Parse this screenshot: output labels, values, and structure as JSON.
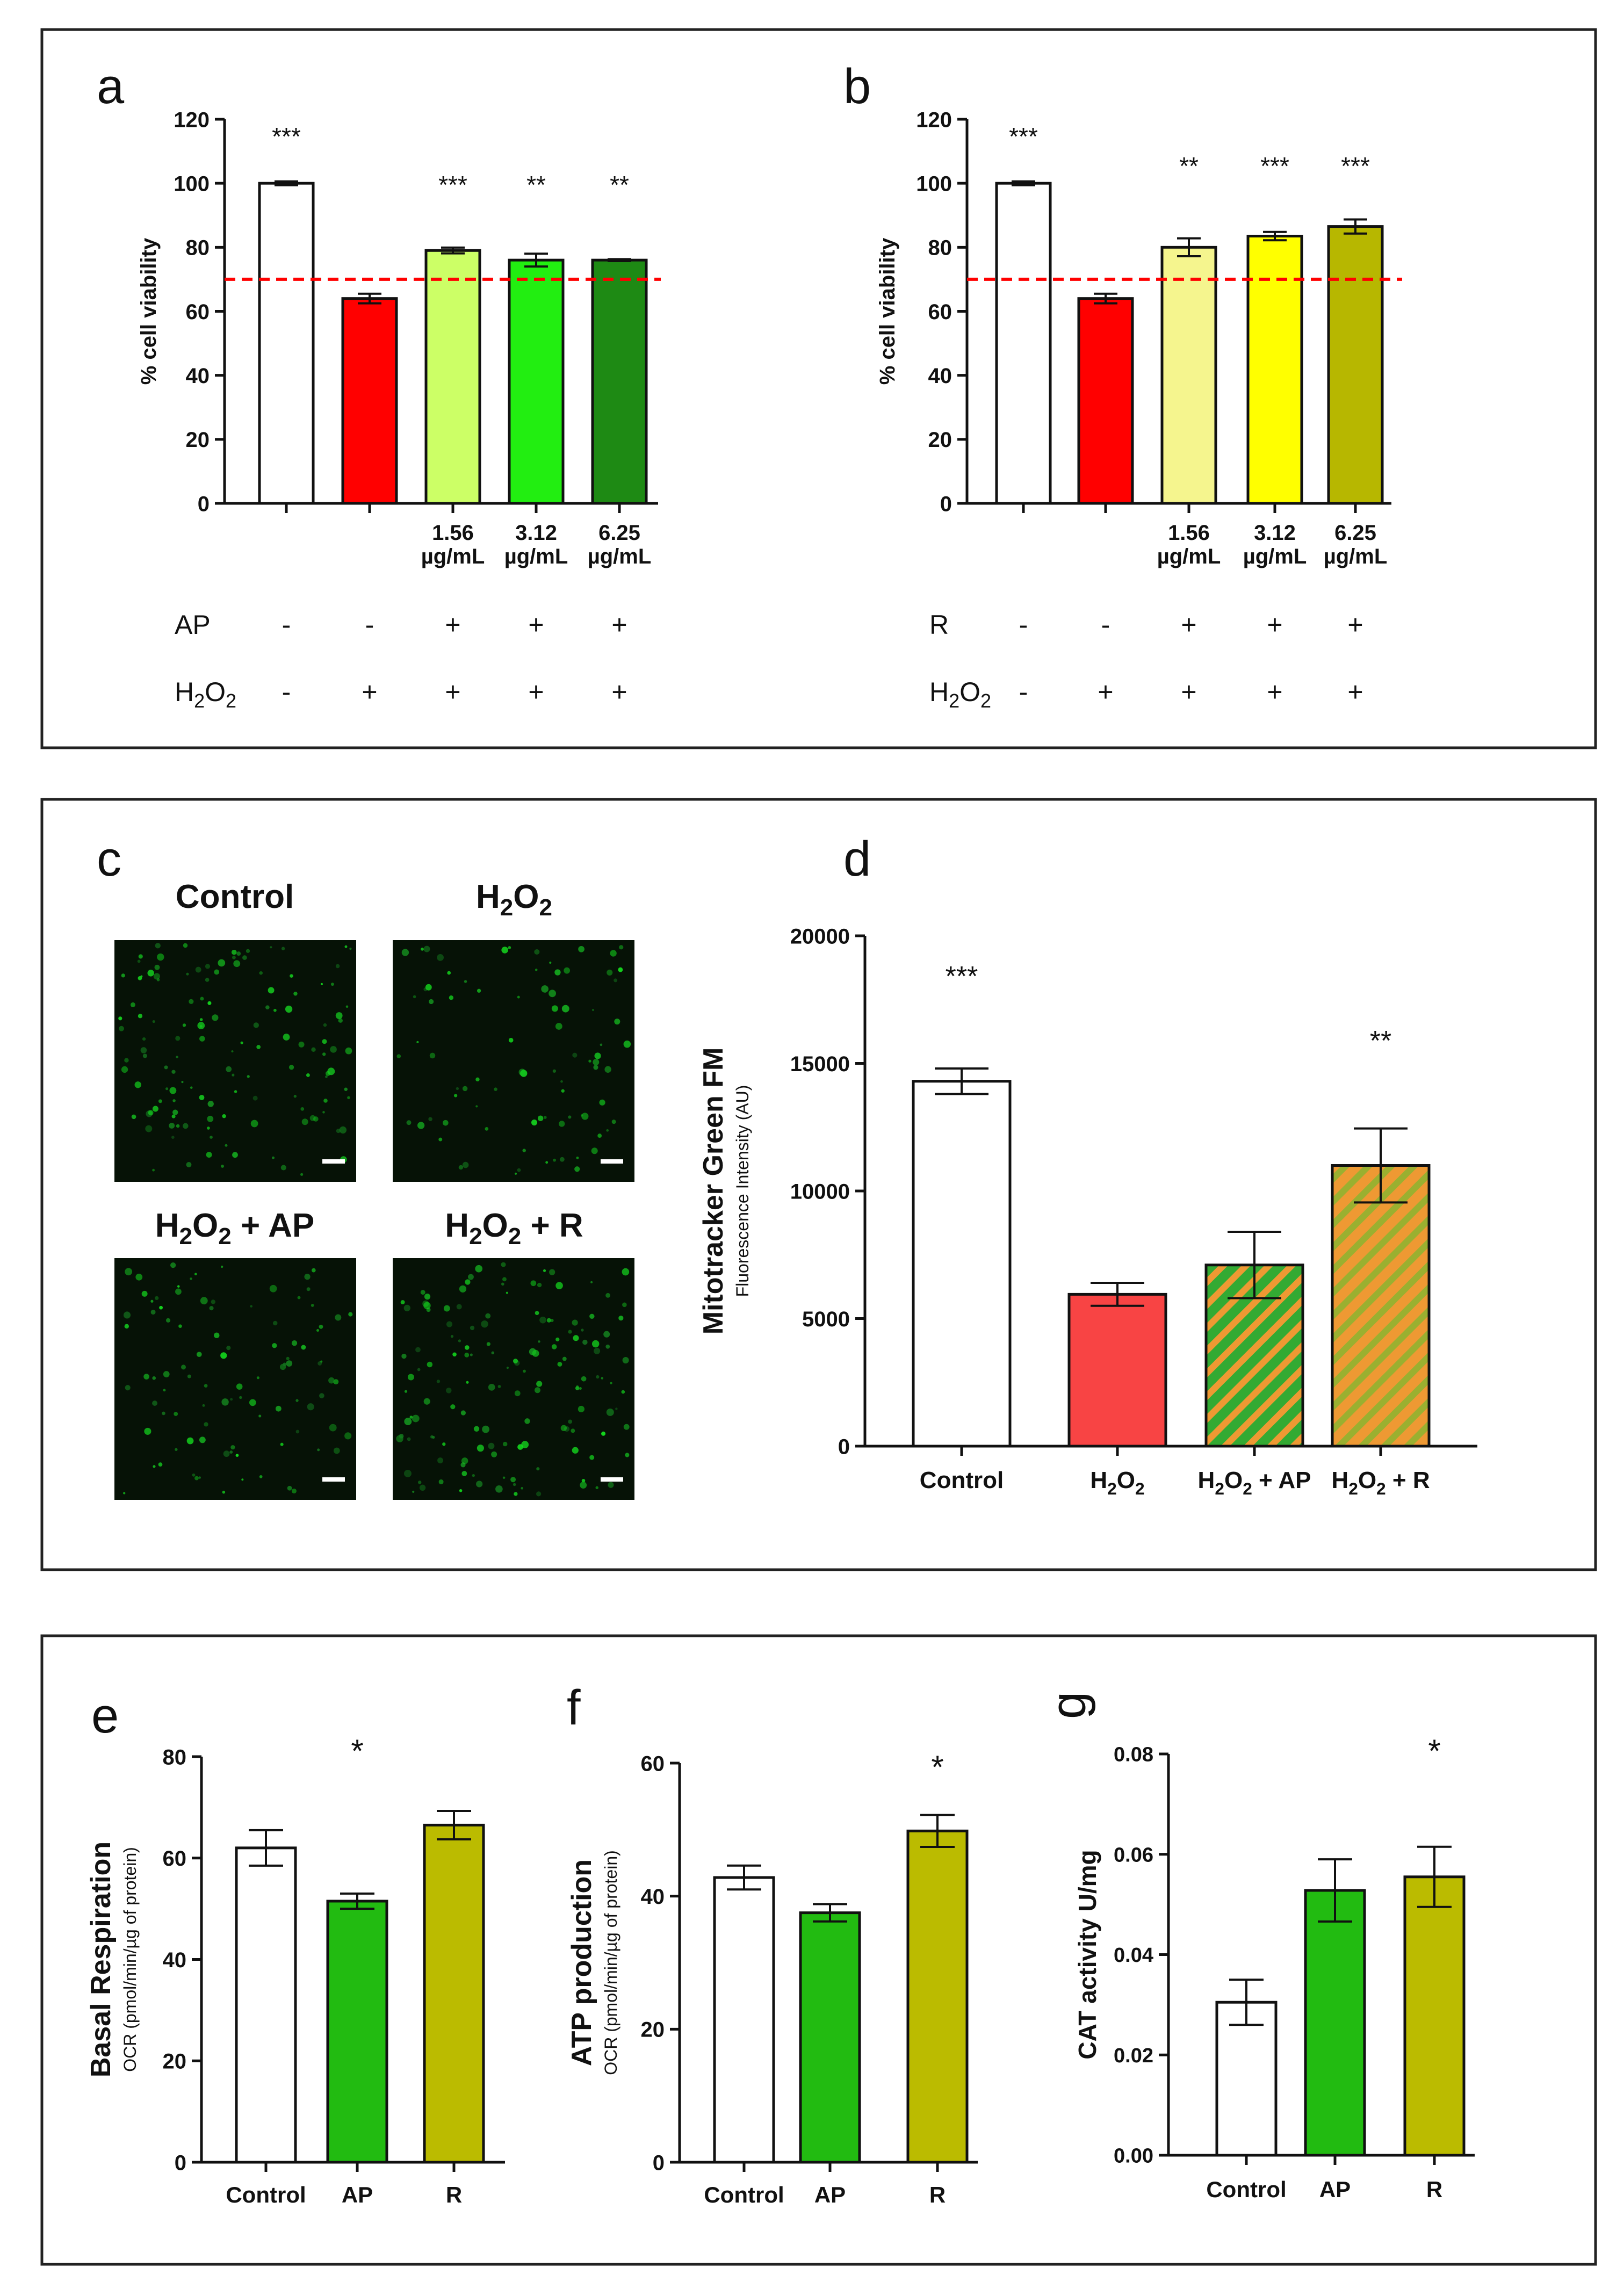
{
  "colors": {
    "ap_1": "#ccff66",
    "ap_2": "#22ee11",
    "ap_3": "#1e8a14",
    "r_1": "#f5f58e",
    "r_2": "#ffff00",
    "r_3": "#b7b700",
    "h2o2": "#ff0000",
    "h2o2_soft": "#f84444",
    "green_bar": "#22bb11",
    "olive_bar": "#bbbb00",
    "hatch_green": "#33aa33",
    "hatch_orange": "#ee9933",
    "threshold_line": "#ff0000"
  },
  "panels": {
    "a": {
      "letter": "a"
    },
    "b": {
      "letter": "b"
    },
    "c": {
      "letter": "c",
      "labels": {
        "control": "Control",
        "h2o2_plus_ap_suffix": " + AP",
        "h2o2_plus_r_suffix": " + R"
      },
      "scale_bar": "scale-bar"
    },
    "d": {
      "letter": "d"
    },
    "e": {
      "letter": "e"
    },
    "f": {
      "letter": "f"
    },
    "g": {
      "letter": "g"
    }
  },
  "chart_data": [
    {
      "id": "a",
      "type": "bar",
      "ylabel": "% cell viability",
      "ylim": [
        0,
        120
      ],
      "yticks": [
        0,
        20,
        40,
        60,
        80,
        100,
        120
      ],
      "reference_line": 70,
      "categories": [
        "",
        "",
        "1.56\nµg/mL",
        "3.12\nµg/mL",
        "6.25\nµg/mL"
      ],
      "values": [
        100,
        64,
        79,
        76,
        76
      ],
      "errors": [
        0.6,
        1.5,
        0.9,
        2.0,
        0.3
      ],
      "significance": [
        "***",
        "",
        "***",
        "**",
        "**"
      ],
      "conditions": [
        {
          "label": "AP",
          "signs": [
            "-",
            "-",
            "+",
            "+",
            "+"
          ]
        },
        {
          "label": "H2O2",
          "signs": [
            "-",
            "+",
            "+",
            "+",
            "+"
          ]
        }
      ]
    },
    {
      "id": "b",
      "type": "bar",
      "ylabel": "% cell viability",
      "ylim": [
        0,
        120
      ],
      "yticks": [
        0,
        20,
        40,
        60,
        80,
        100,
        120
      ],
      "reference_line": 70,
      "categories": [
        "",
        "",
        "1.56\nµg/mL",
        "3.12\nµg/mL",
        "6.25\nµg/mL"
      ],
      "values": [
        100,
        64,
        80,
        83.5,
        86.5
      ],
      "errors": [
        0.6,
        1.5,
        2.8,
        1.3,
        2.2
      ],
      "significance": [
        "***",
        "",
        "**",
        "***",
        "***"
      ],
      "conditions": [
        {
          "label": "R",
          "signs": [
            "-",
            "-",
            "+",
            "+",
            "+"
          ]
        },
        {
          "label": "H2O2",
          "signs": [
            "-",
            "+",
            "+",
            "+",
            "+"
          ]
        }
      ]
    },
    {
      "id": "d",
      "type": "bar",
      "ylabel": "Mitotracker Green FM",
      "ylabel_sub": "Fluorescence Intensity (AU)",
      "ylim": [
        0,
        20000
      ],
      "yticks": [
        0,
        5000,
        10000,
        15000,
        20000
      ],
      "categories": [
        "Control",
        "H2O2",
        "H2O2 + AP",
        "H2O2 + R"
      ],
      "values": [
        14300,
        5950,
        7100,
        11000
      ],
      "errors": [
        500,
        450,
        1300,
        1450
      ],
      "significance": [
        "***",
        "",
        "",
        "**"
      ]
    },
    {
      "id": "e",
      "type": "bar",
      "ylabel": "Basal Respiration",
      "ylabel_sub": "OCR (pmol/min/µg of protein)",
      "ylim": [
        0,
        80
      ],
      "yticks": [
        0,
        20,
        40,
        60,
        80
      ],
      "categories": [
        "Control",
        "AP",
        "R"
      ],
      "values": [
        62,
        51.5,
        66.5
      ],
      "errors": [
        3.5,
        1.5,
        2.8
      ],
      "significance": [
        "",
        "*",
        ""
      ]
    },
    {
      "id": "f",
      "type": "bar",
      "ylabel": "ATP production",
      "ylabel_sub": "OCR (pmol/min/µg of protein)",
      "ylim": [
        0,
        60
      ],
      "yticks": [
        0,
        20,
        40,
        60
      ],
      "categories": [
        "Control",
        "AP",
        "R"
      ],
      "values": [
        42.8,
        37.5,
        49.8
      ],
      "errors": [
        1.8,
        1.3,
        2.4
      ],
      "significance": [
        "",
        "",
        "*"
      ]
    },
    {
      "id": "g",
      "type": "bar",
      "ylabel": "CAT activity U/mg",
      "ylim": [
        0,
        0.08
      ],
      "yticks": [
        0.0,
        0.02,
        0.04,
        0.06,
        0.08
      ],
      "ytick_decimals": 2,
      "categories": [
        "Control",
        "AP",
        "R"
      ],
      "values": [
        0.0305,
        0.0528,
        0.0555
      ],
      "errors": [
        0.0045,
        0.0062,
        0.006
      ],
      "significance": [
        "",
        "",
        "*"
      ]
    }
  ]
}
